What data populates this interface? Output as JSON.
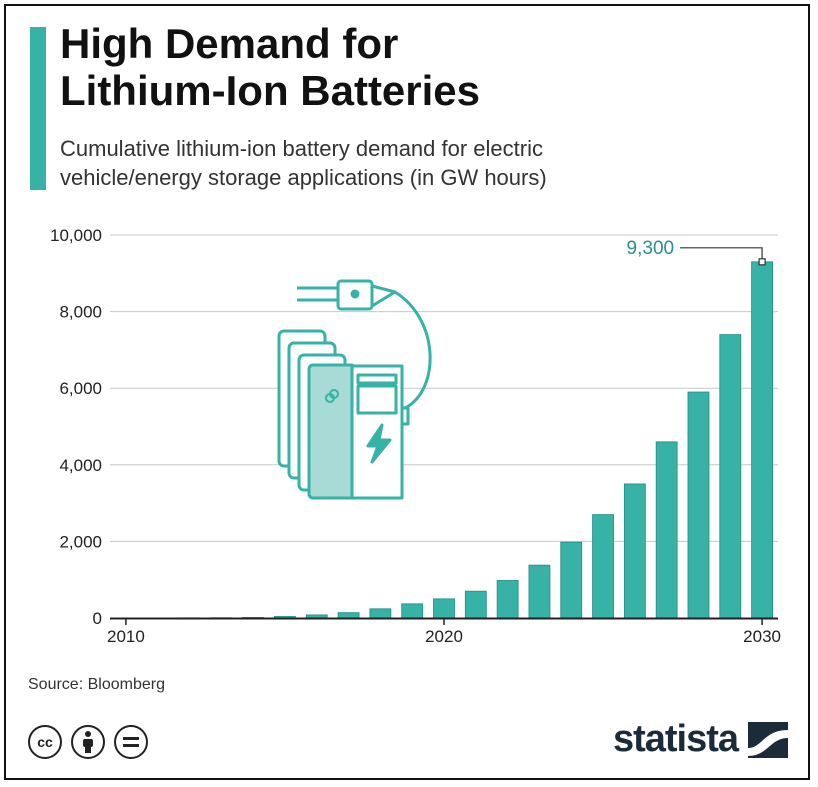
{
  "header": {
    "title_line1": "High Demand for",
    "title_line2": "Lithium-Ion Batteries",
    "subtitle_line1": "Cumulative lithium-ion battery demand for electric",
    "subtitle_line2": "vehicle/energy storage applications (in GW hours)"
  },
  "footer": {
    "source": "Source: Bloomberg",
    "brand": "statista",
    "license_icons": [
      "cc-icon",
      "by-icon",
      "nd-icon"
    ]
  },
  "colors": {
    "bar": "#36b2a6",
    "bar_edge": "#1e8f85",
    "accent": "#36b2a6",
    "grid": "#c8c8c8",
    "callout": "#2a8f86"
  },
  "chart_data": {
    "type": "bar",
    "title": "High Demand for Lithium-Ion Batteries",
    "subtitle": "Cumulative lithium-ion battery demand for electric vehicle/energy storage applications (in GW hours)",
    "x": [
      2010,
      2011,
      2012,
      2013,
      2014,
      2015,
      2016,
      2017,
      2018,
      2019,
      2020,
      2021,
      2022,
      2023,
      2024,
      2025,
      2026,
      2027,
      2028,
      2029,
      2030
    ],
    "values": [
      1,
      2,
      4,
      8,
      15,
      40,
      80,
      140,
      240,
      370,
      500,
      700,
      980,
      1380,
      1980,
      2700,
      3500,
      4600,
      5900,
      7400,
      9300
    ],
    "xticks": [
      "2010",
      "2020",
      "2030"
    ],
    "yticks": [
      "0",
      "2,000",
      "4,000",
      "6,000",
      "8,000",
      "10,000"
    ],
    "ylim": [
      0,
      10000
    ],
    "callout": "9,300",
    "xlabel": "",
    "ylabel": "",
    "grid": true
  }
}
